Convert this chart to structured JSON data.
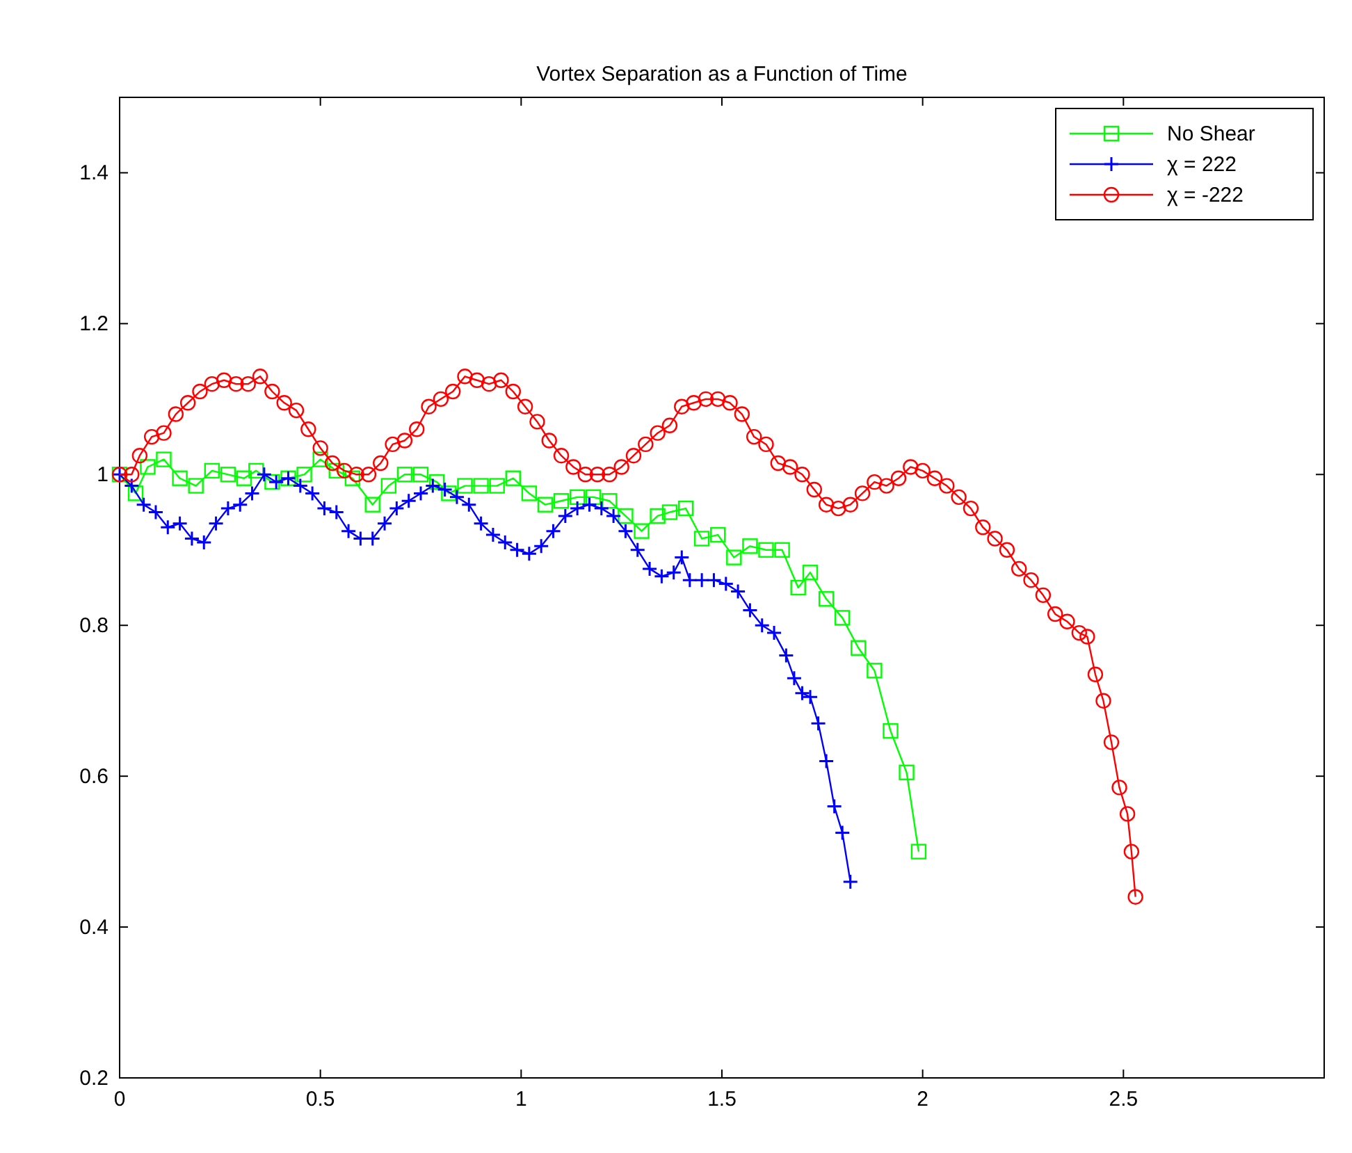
{
  "chart_data": {
    "type": "line",
    "title": "Vortex Separation as a Function of Time",
    "xlim": [
      0,
      3
    ],
    "xticks": [
      0,
      0.5,
      1,
      1.5,
      2,
      2.5
    ],
    "ylim": [
      0.2,
      1.5
    ],
    "yticks": [
      0.2,
      0.4,
      0.6,
      0.8,
      1,
      1.2,
      1.4
    ],
    "grid": false,
    "legend": "top right",
    "series": [
      {
        "name": "No Shear",
        "color": "#00ff00",
        "marker": "square",
        "x": [
          0,
          0.04,
          0.07,
          0.11,
          0.15,
          0.19,
          0.23,
          0.27,
          0.31,
          0.34,
          0.38,
          0.42,
          0.46,
          0.5,
          0.54,
          0.58,
          0.63,
          0.67,
          0.71,
          0.75,
          0.79,
          0.82,
          0.86,
          0.9,
          0.94,
          0.98,
          1.02,
          1.06,
          1.1,
          1.14,
          1.18,
          1.22,
          1.26,
          1.3,
          1.34,
          1.37,
          1.41,
          1.45,
          1.49,
          1.53,
          1.57,
          1.61,
          1.65,
          1.69,
          1.72,
          1.76,
          1.8,
          1.84,
          1.88,
          1.92,
          1.96,
          1.99
        ],
        "values": [
          1.0,
          0.975,
          1.01,
          1.02,
          0.995,
          0.985,
          1.005,
          1.0,
          0.995,
          1.005,
          0.99,
          0.995,
          1.0,
          1.02,
          1.005,
          0.995,
          0.96,
          0.985,
          1.0,
          1.0,
          0.99,
          0.975,
          0.985,
          0.985,
          0.985,
          0.995,
          0.975,
          0.96,
          0.965,
          0.97,
          0.97,
          0.965,
          0.945,
          0.925,
          0.945,
          0.95,
          0.955,
          0.915,
          0.92,
          0.89,
          0.905,
          0.9,
          0.9,
          0.85,
          0.87,
          0.835,
          0.81,
          0.77,
          0.74,
          0.66,
          0.605,
          0.5
        ]
      },
      {
        "name": "χ = 222",
        "color": "#0000ff",
        "marker": "cross",
        "x": [
          0,
          0.03,
          0.06,
          0.09,
          0.12,
          0.15,
          0.18,
          0.21,
          0.24,
          0.27,
          0.3,
          0.33,
          0.36,
          0.39,
          0.42,
          0.45,
          0.48,
          0.51,
          0.54,
          0.57,
          0.6,
          0.63,
          0.66,
          0.69,
          0.72,
          0.75,
          0.78,
          0.81,
          0.84,
          0.87,
          0.9,
          0.93,
          0.96,
          0.99,
          1.02,
          1.05,
          1.08,
          1.11,
          1.14,
          1.17,
          1.2,
          1.23,
          1.26,
          1.29,
          1.32,
          1.35,
          1.38,
          1.4,
          1.42,
          1.45,
          1.48,
          1.51,
          1.54,
          1.57,
          1.6,
          1.63,
          1.66,
          1.68,
          1.7,
          1.72,
          1.74,
          1.76,
          1.78,
          1.8,
          1.82
        ],
        "values": [
          1.0,
          0.985,
          0.96,
          0.95,
          0.93,
          0.935,
          0.915,
          0.91,
          0.935,
          0.955,
          0.96,
          0.975,
          1.0,
          0.99,
          0.995,
          0.985,
          0.975,
          0.955,
          0.95,
          0.925,
          0.915,
          0.915,
          0.935,
          0.955,
          0.965,
          0.975,
          0.985,
          0.98,
          0.97,
          0.96,
          0.935,
          0.92,
          0.91,
          0.9,
          0.895,
          0.905,
          0.925,
          0.945,
          0.955,
          0.96,
          0.955,
          0.945,
          0.925,
          0.9,
          0.875,
          0.865,
          0.87,
          0.89,
          0.86,
          0.86,
          0.86,
          0.855,
          0.845,
          0.82,
          0.8,
          0.79,
          0.76,
          0.73,
          0.71,
          0.705,
          0.67,
          0.62,
          0.56,
          0.525,
          0.46
        ]
      },
      {
        "name": "χ = -222",
        "color": "#ff0000",
        "marker": "circle",
        "x": [
          0,
          0.03,
          0.05,
          0.08,
          0.11,
          0.14,
          0.17,
          0.2,
          0.23,
          0.26,
          0.29,
          0.32,
          0.35,
          0.38,
          0.41,
          0.44,
          0.47,
          0.5,
          0.53,
          0.56,
          0.59,
          0.62,
          0.65,
          0.68,
          0.71,
          0.74,
          0.77,
          0.8,
          0.83,
          0.86,
          0.89,
          0.92,
          0.95,
          0.98,
          1.01,
          1.04,
          1.07,
          1.1,
          1.13,
          1.16,
          1.19,
          1.22,
          1.25,
          1.28,
          1.31,
          1.34,
          1.37,
          1.4,
          1.43,
          1.46,
          1.49,
          1.52,
          1.55,
          1.58,
          1.61,
          1.64,
          1.67,
          1.7,
          1.73,
          1.76,
          1.79,
          1.82,
          1.85,
          1.88,
          1.91,
          1.94,
          1.97,
          2.0,
          2.03,
          2.06,
          2.09,
          2.12,
          2.15,
          2.18,
          2.21,
          2.24,
          2.27,
          2.3,
          2.33,
          2.36,
          2.39,
          2.41,
          2.43,
          2.45,
          2.47,
          2.49,
          2.51,
          2.52,
          2.53
        ],
        "values": [
          1.0,
          1.0,
          1.025,
          1.05,
          1.055,
          1.08,
          1.095,
          1.11,
          1.12,
          1.125,
          1.12,
          1.12,
          1.13,
          1.11,
          1.095,
          1.085,
          1.06,
          1.035,
          1.015,
          1.005,
          1.0,
          1.0,
          1.015,
          1.04,
          1.045,
          1.06,
          1.09,
          1.1,
          1.11,
          1.13,
          1.125,
          1.12,
          1.125,
          1.11,
          1.09,
          1.07,
          1.045,
          1.025,
          1.01,
          1.0,
          1.0,
          1.0,
          1.01,
          1.025,
          1.04,
          1.055,
          1.065,
          1.09,
          1.095,
          1.1,
          1.1,
          1.095,
          1.08,
          1.05,
          1.04,
          1.015,
          1.01,
          1.0,
          0.98,
          0.96,
          0.955,
          0.96,
          0.975,
          0.99,
          0.985,
          0.995,
          1.01,
          1.005,
          0.995,
          0.985,
          0.97,
          0.955,
          0.93,
          0.915,
          0.9,
          0.875,
          0.86,
          0.84,
          0.815,
          0.805,
          0.79,
          0.785,
          0.735,
          0.7,
          0.645,
          0.585,
          0.55,
          0.5,
          0.44
        ]
      }
    ]
  }
}
